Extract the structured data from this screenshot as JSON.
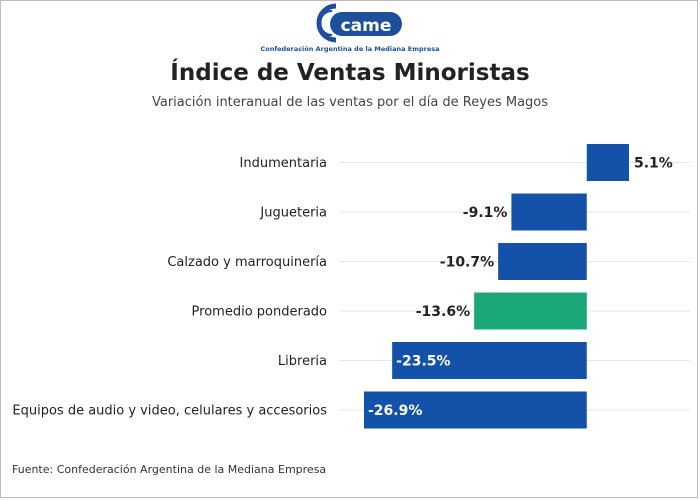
{
  "logo": {
    "wordmark": "came",
    "tagline": "Confederación Argentina de la Mediana Empresa"
  },
  "colors": {
    "brand_blue": "#1352a8",
    "highlight_green": "#1aa878",
    "grid": "#e6e6e6"
  },
  "source_text": "Fuente: Confederación Argentina de la Mediana Empresa",
  "chart_data": {
    "type": "bar",
    "orientation": "horizontal",
    "title": "Índice de Ventas Minoristas",
    "subtitle": "Variación interanual de las ventas por el día de Reyes Magos",
    "categories": [
      "Indumentaria",
      "Jugueteria",
      "Calzado y marroquinería",
      "Promedio ponderado",
      "Libreria",
      "Equipos de audio y video, celulares y accesorios"
    ],
    "values": [
      5.1,
      -9.1,
      -10.7,
      -13.6,
      -23.5,
      -26.9
    ],
    "value_labels": [
      "5.1%",
      "-9.1%",
      "-10.7%",
      "-13.6%",
      "-23.5%",
      "-26.9%"
    ],
    "bar_colors": [
      "#1352a8",
      "#1352a8",
      "#1352a8",
      "#1aa878",
      "#1352a8",
      "#1352a8"
    ],
    "xlim": [
      -26.9,
      5.1
    ],
    "grid": true,
    "legend": "none"
  }
}
